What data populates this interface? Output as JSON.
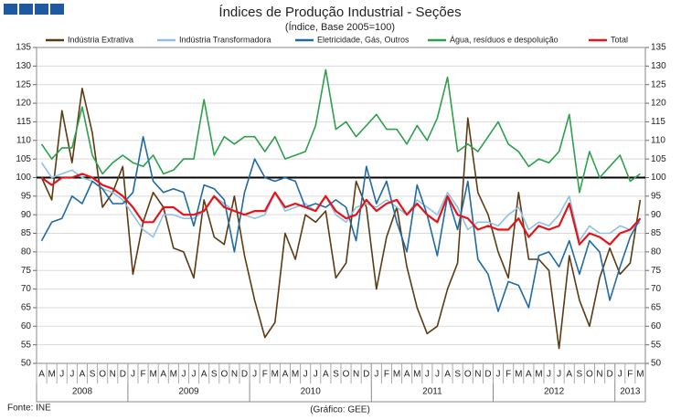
{
  "chart_data": {
    "type": "line",
    "title": "Índices de Produção Industrial - Seções",
    "subtitle": "(Índice, Base 2005=100)",
    "source": "Fonte: INE",
    "credit": "(Gráfico: GEE)",
    "categories": [
      "A",
      "M",
      "J",
      "J",
      "A",
      "S",
      "O",
      "N",
      "D",
      "J",
      "F",
      "M",
      "A",
      "M",
      "J",
      "J",
      "A",
      "S",
      "O",
      "N",
      "D",
      "J",
      "F",
      "M",
      "A",
      "M",
      "J",
      "J",
      "A",
      "S",
      "O",
      "N",
      "D",
      "J",
      "F",
      "M",
      "A",
      "M",
      "J",
      "J",
      "A",
      "S",
      "O",
      "N",
      "D",
      "J",
      "F",
      "M",
      "A",
      "M",
      "J",
      "J",
      "A",
      "S",
      "O",
      "N",
      "D",
      "J",
      "F",
      "M"
    ],
    "years": [
      "2008",
      "2009",
      "2010",
      "2011",
      "2012",
      "2013"
    ],
    "ylim": [
      50,
      135
    ],
    "yticks": [
      50,
      55,
      60,
      65,
      70,
      75,
      80,
      85,
      90,
      95,
      100,
      105,
      110,
      115,
      120,
      125,
      130,
      135
    ],
    "y2lim": [
      50,
      135
    ],
    "y2ticks": [
      50,
      55,
      60,
      65,
      70,
      75,
      80,
      85,
      90,
      95,
      100,
      105,
      110,
      115,
      120,
      125,
      130,
      135
    ],
    "reference_line": 100,
    "grid": true,
    "legend": "top",
    "series": [
      {
        "name": "Indústria Extrativa",
        "color": "#5c3a12",
        "values": [
          100,
          94,
          118,
          104,
          124,
          112,
          92,
          96,
          103,
          74,
          88,
          96,
          92,
          81,
          80,
          73,
          94,
          84,
          82,
          95,
          79,
          67,
          57,
          61,
          85,
          78,
          90,
          88,
          91,
          73,
          77,
          99,
          92,
          70,
          84,
          92,
          76,
          65,
          58,
          60,
          70,
          77,
          116,
          96,
          90,
          80,
          73,
          96,
          78,
          78,
          75,
          54,
          79,
          67,
          60,
          73,
          81,
          74,
          77,
          94
        ]
      },
      {
        "name": "Indústria Transformadora",
        "color": "#8fc1e3",
        "values": [
          104,
          100,
          101,
          102,
          100,
          99,
          97,
          96,
          94,
          90,
          86,
          84,
          90,
          90,
          89,
          89,
          91,
          95,
          93,
          91,
          90,
          89,
          90,
          96,
          91,
          92,
          93,
          91,
          95,
          90,
          88,
          92,
          93,
          92,
          94,
          92,
          90,
          94,
          92,
          90,
          96,
          92,
          86,
          88,
          88,
          87,
          90,
          92,
          86,
          88,
          87,
          90,
          95,
          83,
          87,
          85,
          85,
          87,
          86,
          88
        ]
      },
      {
        "name": "Eletricidade, Gás, Outros",
        "color": "#1f6aa5",
        "values": [
          83,
          88,
          89,
          95,
          93,
          99,
          97,
          93,
          93,
          96,
          111,
          99,
          96,
          97,
          96,
          87,
          98,
          97,
          94,
          80,
          96,
          105,
          100,
          99,
          100,
          99,
          92,
          93,
          92,
          94,
          92,
          83,
          103,
          93,
          99,
          88,
          80,
          98,
          90,
          79,
          95,
          86,
          99,
          78,
          74,
          64,
          72,
          71,
          65,
          79,
          80,
          76,
          83,
          74,
          83,
          80,
          67,
          76,
          84,
          89
        ]
      },
      {
        "name": "Água, resíduos e despoluição",
        "color": "#2ca04c",
        "values": [
          109,
          105,
          108,
          108,
          119,
          106,
          101,
          104,
          106,
          104,
          103,
          106,
          101,
          102,
          105,
          105,
          121,
          106,
          111,
          109,
          111,
          111,
          107,
          111,
          105,
          106,
          107,
          114,
          129,
          113,
          115,
          111,
          114,
          117,
          113,
          113,
          109,
          114,
          110,
          116,
          127,
          107,
          109,
          107,
          111,
          115,
          109,
          107,
          103,
          105,
          104,
          107,
          117,
          96,
          107,
          100,
          103,
          106,
          99,
          101
        ]
      },
      {
        "name": "Total",
        "color": "#e3151a",
        "values": [
          100,
          98,
          100,
          100,
          101,
          100,
          98,
          97,
          95,
          92,
          88,
          88,
          92,
          92,
          90,
          90,
          91,
          95,
          92,
          91,
          90,
          91,
          91,
          96,
          92,
          93,
          92,
          91,
          95,
          91,
          89,
          90,
          94,
          91,
          93,
          94,
          90,
          93,
          90,
          88,
          95,
          90,
          89,
          86,
          87,
          86,
          86,
          89,
          84,
          87,
          86,
          87,
          93,
          82,
          85,
          84,
          82,
          85,
          86,
          89
        ]
      }
    ]
  }
}
